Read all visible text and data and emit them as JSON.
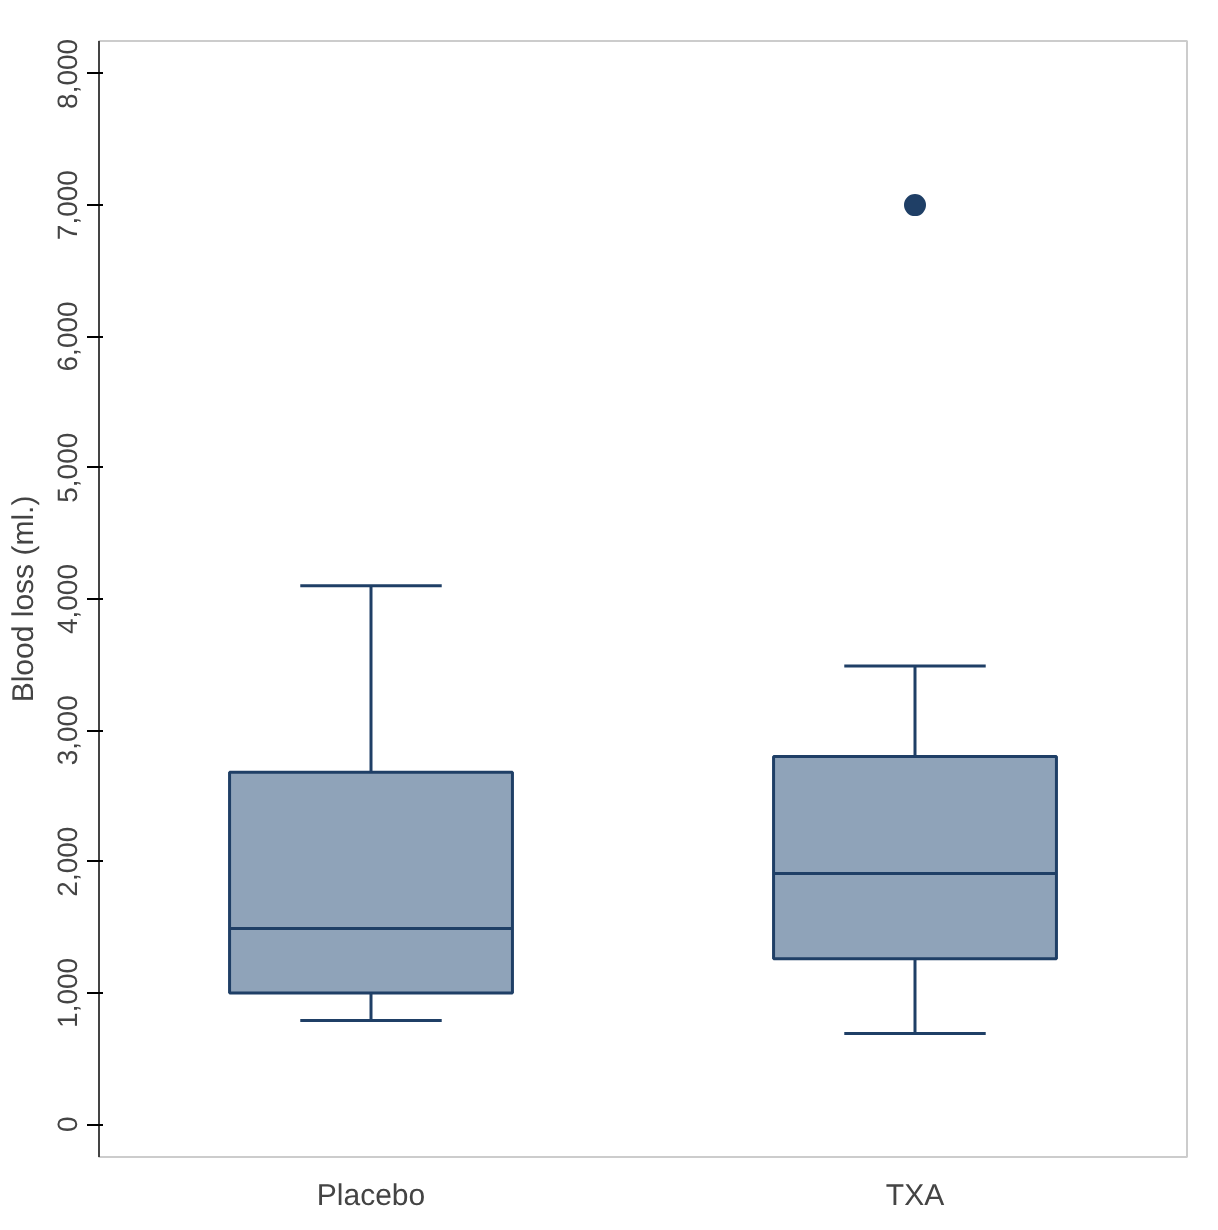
{
  "chart_data": {
    "type": "box",
    "ylabel": "Blood loss (ml.)",
    "categories": [
      "Placebo",
      "TXA"
    ],
    "boxes": [
      {
        "low": 790,
        "q1": 1000,
        "median": 1490,
        "q3": 2680,
        "high": 4100
      },
      {
        "low": 690,
        "q1": 1260,
        "median": 1910,
        "q3": 2800,
        "high": 3490,
        "outliers": [
          7000
        ]
      }
    ],
    "colors": [
      "#8fa3b9",
      "#1f3f66"
    ],
    "ylim": [
      -250,
      8250
    ],
    "yticks": [
      0,
      {
        "value": 1000,
        "label": "1,000"
      },
      {
        "value": 2000,
        "label": "2,000"
      },
      {
        "value": 3000,
        "label": "3,000"
      },
      {
        "value": 4000,
        "label": "4,000"
      },
      {
        "value": 5000,
        "label": "5,000"
      },
      {
        "value": 6000,
        "label": "6,000"
      },
      {
        "value": 7000,
        "label": "7,000"
      },
      {
        "value": 8000,
        "label": "8,000"
      }
    ],
    "grid": false
  }
}
